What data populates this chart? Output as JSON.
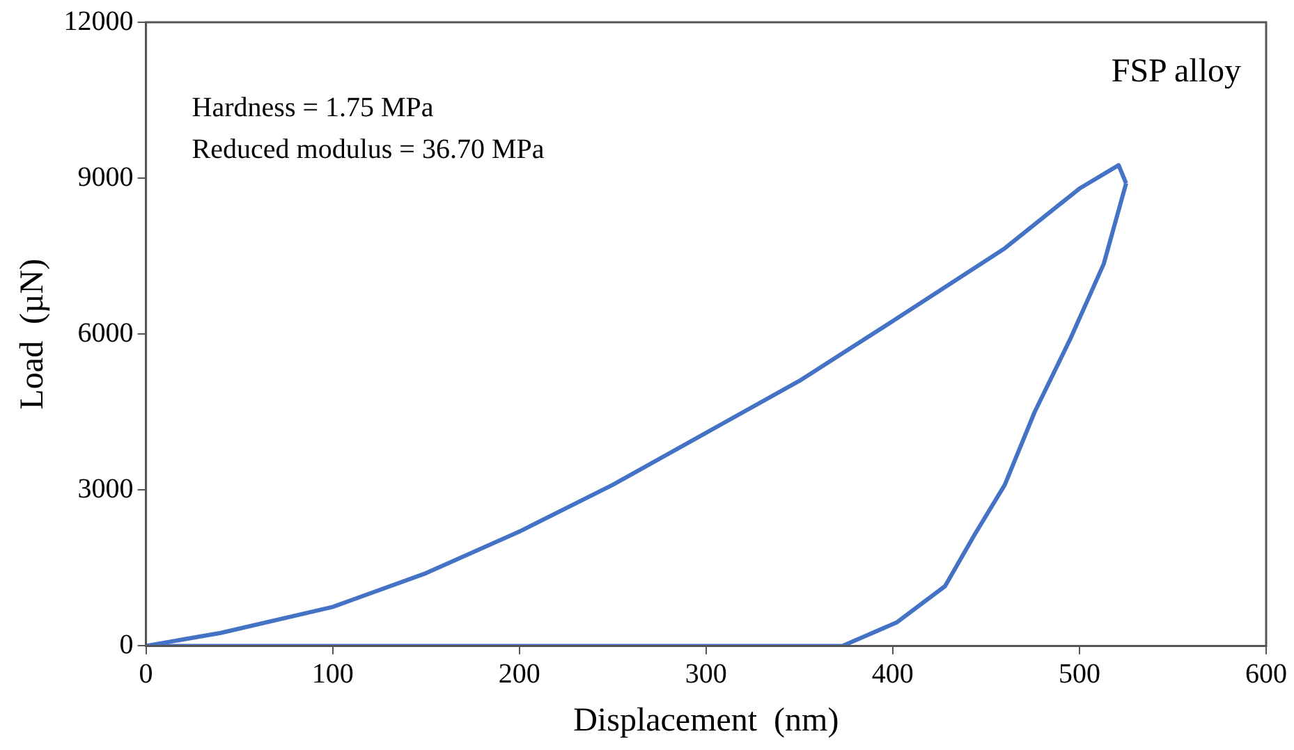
{
  "chart_data": {
    "type": "line",
    "xlabel": "Displacement  (nm)",
    "ylabel": "Load  (µN)",
    "annotations": [
      "FSP alloy",
      "Hardness = 1.75 MPa",
      "Reduced modulus = 36.70 MPa"
    ],
    "xlim": [
      0,
      600
    ],
    "xticks": [
      0,
      100,
      200,
      300,
      400,
      500,
      600
    ],
    "ylim": [
      0,
      12000
    ],
    "yticks": [
      0,
      3000,
      6000,
      9000,
      12000
    ],
    "grid": false,
    "legend": false,
    "marker": "none",
    "line_style": "solid",
    "series": [
      {
        "color": "#4472c4",
        "x": [
          0,
          40,
          100,
          150,
          200,
          250,
          300,
          350,
          400,
          460,
          500,
          521,
          525
        ],
        "values": [
          0,
          250,
          750,
          1400,
          2200,
          3100,
          4100,
          5100,
          6250,
          7650,
          8800,
          9250,
          8900
        ]
      },
      {
        "color": "#4472c4",
        "x": [
          0,
          100,
          200,
          300,
          373,
          402,
          428,
          444,
          460,
          476,
          495,
          513,
          525
        ],
        "values": [
          0,
          0,
          0,
          0,
          0,
          450,
          1150,
          2150,
          3100,
          4500,
          5900,
          7350,
          8900
        ]
      }
    ]
  }
}
